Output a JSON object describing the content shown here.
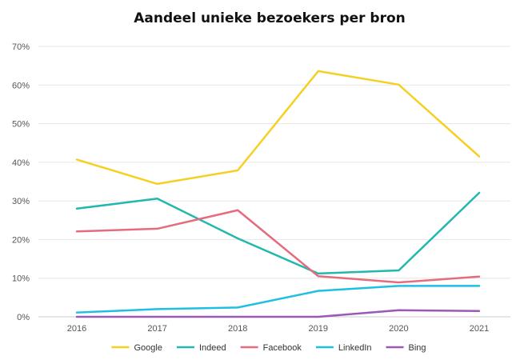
{
  "chart_data": {
    "type": "line",
    "title": "Aandeel unieke bezoekers per bron",
    "x": [
      "2016",
      "2017",
      "2018",
      "2019",
      "2020",
      "2021"
    ],
    "yticks": [
      "0%",
      "10%",
      "20%",
      "30%",
      "40%",
      "50%",
      "60%",
      "70%"
    ],
    "ylim": [
      0,
      70
    ],
    "grid": true,
    "legend_position": "bottom",
    "series": [
      {
        "name": "Google",
        "color": "#F5D022",
        "values": [
          40.7,
          34.4,
          37.9,
          63.6,
          60.1,
          41.5
        ]
      },
      {
        "name": "Indeed",
        "color": "#23B8AE",
        "values": [
          28.0,
          30.6,
          20.3,
          11.2,
          12.0,
          32.1
        ]
      },
      {
        "name": "Facebook",
        "color": "#E46C7E",
        "values": [
          22.1,
          22.8,
          27.6,
          10.5,
          8.9,
          10.4
        ]
      },
      {
        "name": "LinkedIn",
        "color": "#1FBFE3",
        "values": [
          1.1,
          2.0,
          2.4,
          6.7,
          8.0,
          8.0
        ]
      },
      {
        "name": "Bing",
        "color": "#9B59B6",
        "values": [
          0.0,
          0.0,
          0.0,
          0.0,
          1.7,
          1.5
        ]
      }
    ]
  }
}
